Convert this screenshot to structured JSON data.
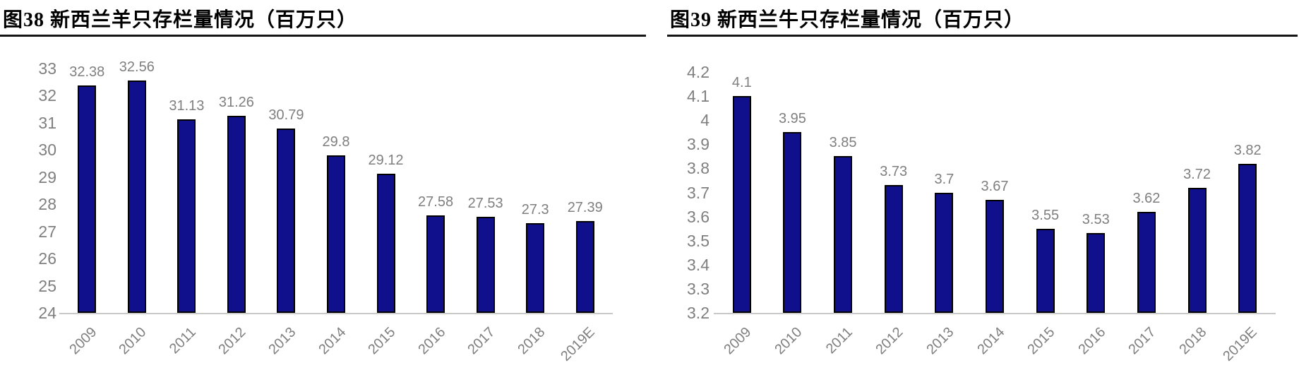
{
  "page": {
    "background_color": "#ffffff",
    "title_color": "#000000",
    "rule_color": "#141414"
  },
  "chart_data": [
    {
      "id": "nz-sheep-stock",
      "type": "bar",
      "title": "图38 新西兰羊只存栏量情况（百万只）",
      "categories": [
        "2009",
        "2010",
        "2011",
        "2012",
        "2013",
        "2014",
        "2015",
        "2016",
        "2017",
        "2018",
        "2019E"
      ],
      "values": [
        32.38,
        32.56,
        31.13,
        31.26,
        30.79,
        29.8,
        29.12,
        27.58,
        27.53,
        27.3,
        27.39
      ],
      "data_labels": [
        "32.38",
        "32.56",
        "31.13",
        "31.26",
        "30.79",
        "29.8",
        "29.12",
        "27.58",
        "27.53",
        "27.3",
        "27.39"
      ],
      "ylim": [
        24,
        33
      ],
      "ytick_labels": [
        "33",
        "32",
        "31",
        "30",
        "29",
        "28",
        "27",
        "26",
        "25",
        "24"
      ],
      "xlabel": "",
      "ylabel": "",
      "grid": false,
      "legend": "none",
      "bar_color": "#10108c",
      "bar_border_color": "#000000",
      "axis_line_color": "#c9c9c9",
      "tick_label_color": "#7f7f7f",
      "data_label_color": "#7f7f7f"
    },
    {
      "id": "nz-cattle-stock",
      "type": "bar",
      "title": "图39 新西兰牛只存栏量情况（百万只）",
      "categories": [
        "2009",
        "2010",
        "2011",
        "2012",
        "2013",
        "2014",
        "2015",
        "2016",
        "2017",
        "2018",
        "2019E"
      ],
      "values": [
        4.1,
        3.95,
        3.85,
        3.73,
        3.7,
        3.67,
        3.55,
        3.53,
        3.62,
        3.72,
        3.82
      ],
      "data_labels": [
        "4.1",
        "3.95",
        "3.85",
        "3.73",
        "3.7",
        "3.67",
        "3.55",
        "3.53",
        "3.62",
        "3.72",
        "3.82"
      ],
      "ylim": [
        3.2,
        4.2
      ],
      "ytick_labels": [
        "4.2",
        "4.1",
        "4",
        "3.9",
        "3.8",
        "3.7",
        "3.6",
        "3.5",
        "3.4",
        "3.3",
        "3.2"
      ],
      "xlabel": "",
      "ylabel": "",
      "grid": false,
      "legend": "none",
      "bar_color": "#10108c",
      "bar_border_color": "#000000",
      "axis_line_color": "#c9c9c9",
      "tick_label_color": "#7f7f7f",
      "data_label_color": "#7f7f7f"
    }
  ]
}
